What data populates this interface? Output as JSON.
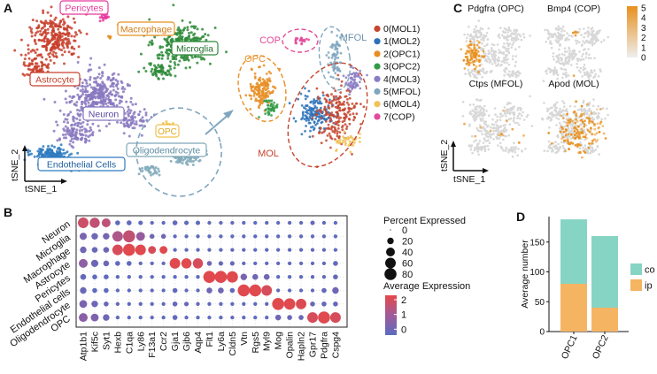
{
  "panel_labels": {
    "a": "A",
    "b": "B",
    "c": "C",
    "d": "D"
  },
  "tsne_main": {
    "clusters": [
      {
        "label": "Pericytes",
        "color": "#e8389c"
      },
      {
        "label": "Macrophage",
        "color": "#e8901e"
      },
      {
        "label": "Microglia",
        "color": "#2e8b3a"
      },
      {
        "label": "Astrocyte",
        "color": "#c8402c"
      },
      {
        "label": "Neuron",
        "color": "#8878c0"
      },
      {
        "label": "OPC",
        "color": "#f0c14a"
      },
      {
        "label": "Oligodendrocyte",
        "color": "#7fa8b8"
      },
      {
        "label": "Endothelial Cells",
        "color": "#2e7bc0"
      }
    ],
    "axis_x": "tSNE_1",
    "axis_y": "tSNE_2"
  },
  "tsne_sub": {
    "region_labels": {
      "cop": "COP",
      "mfol": "MFOL",
      "opc": "OPC",
      "mol": "MOL"
    },
    "legend": [
      {
        "label": "0(MOL1)",
        "color": "#c6452e"
      },
      {
        "label": "1(MOL2)",
        "color": "#2b72b8"
      },
      {
        "label": "2(OPC1)",
        "color": "#e88e23"
      },
      {
        "label": "3(OPC2)",
        "color": "#339b48"
      },
      {
        "label": "4(MOL3)",
        "color": "#8b7dc4"
      },
      {
        "label": "5(MFOL)",
        "color": "#7fa6bf"
      },
      {
        "label": "6(MOL4)",
        "color": "#f0c35a"
      },
      {
        "label": "7(COP)",
        "color": "#e34a9a"
      }
    ]
  },
  "feature_plots": {
    "panels": [
      {
        "title": "Pdgfra (OPC)"
      },
      {
        "title": "Bmp4 (COP)"
      },
      {
        "title": "Ctps (MFOL)"
      },
      {
        "title": "Apod (MOL)"
      }
    ],
    "colorbar_ticks": [
      "5",
      "4",
      "3",
      "2",
      "1",
      "0"
    ],
    "axis_x": "tSNE_1",
    "axis_y": "tSNE_2"
  },
  "chart_data": [
    {
      "type": "dot",
      "title": "",
      "cell_types": [
        "Neuron",
        "Microglia",
        "Macrophage",
        "Astrocyte",
        "Pericytes",
        "Endothelial cells",
        "Oligodendrocyte",
        "OPC"
      ],
      "genes": [
        "Atp1b1",
        "Kif5c",
        "Syt1",
        "Hexb",
        "C1qa",
        "Ly86",
        "F13a1",
        "Ccr2",
        "Gja1",
        "Gjb6",
        "Aqp4",
        "Flt1",
        "Ly6a",
        "Cldn5",
        "Vtn",
        "Rgs5",
        "Myl9",
        "Mog",
        "Opalin",
        "Hapln2",
        "Gpr17",
        "Pdgfra",
        "Cspg4"
      ],
      "percent_expressed": [
        [
          60,
          55,
          40,
          10,
          10,
          8,
          5,
          5,
          10,
          8,
          8,
          5,
          5,
          5,
          5,
          5,
          5,
          5,
          5,
          5,
          8,
          5,
          5
        ],
        [
          25,
          20,
          20,
          60,
          80,
          40,
          10,
          10,
          5,
          5,
          5,
          5,
          5,
          5,
          5,
          5,
          5,
          5,
          5,
          5,
          5,
          5,
          5
        ],
        [
          20,
          15,
          15,
          60,
          80,
          60,
          30,
          30,
          5,
          5,
          5,
          5,
          5,
          5,
          5,
          5,
          5,
          5,
          5,
          5,
          5,
          5,
          5
        ],
        [
          40,
          25,
          15,
          10,
          10,
          5,
          5,
          5,
          60,
          55,
          55,
          10,
          8,
          8,
          5,
          5,
          5,
          5,
          5,
          5,
          5,
          5,
          10
        ],
        [
          15,
          10,
          10,
          5,
          5,
          5,
          5,
          5,
          5,
          5,
          5,
          80,
          80,
          70,
          20,
          15,
          15,
          5,
          5,
          5,
          5,
          5,
          10
        ],
        [
          20,
          10,
          10,
          5,
          5,
          5,
          5,
          5,
          10,
          5,
          5,
          15,
          15,
          10,
          80,
          80,
          60,
          5,
          5,
          5,
          5,
          10,
          20
        ],
        [
          30,
          20,
          10,
          5,
          5,
          5,
          5,
          5,
          10,
          8,
          5,
          5,
          5,
          5,
          5,
          5,
          5,
          80,
          70,
          60,
          10,
          10,
          10
        ],
        [
          40,
          30,
          20,
          5,
          5,
          5,
          5,
          5,
          10,
          5,
          5,
          5,
          5,
          5,
          5,
          5,
          5,
          15,
          10,
          10,
          60,
          80,
          60
        ]
      ],
      "average_expression": [
        [
          1.8,
          1.6,
          1.5,
          -0.3,
          -0.3,
          -0.3,
          -0.3,
          -0.3,
          -0.2,
          -0.3,
          -0.3,
          -0.3,
          -0.3,
          -0.3,
          -0.3,
          -0.3,
          -0.3,
          -0.3,
          -0.3,
          -0.3,
          -0.2,
          -0.3,
          -0.3
        ],
        [
          0.2,
          0.0,
          0.1,
          1.2,
          1.6,
          0.8,
          0.0,
          0.0,
          -0.3,
          -0.3,
          -0.3,
          -0.3,
          -0.3,
          -0.3,
          -0.3,
          -0.3,
          -0.3,
          -0.3,
          -0.3,
          -0.3,
          -0.3,
          -0.3,
          -0.3
        ],
        [
          0.0,
          -0.1,
          0.0,
          2.0,
          2.2,
          2.2,
          2.0,
          2.2,
          -0.3,
          -0.3,
          -0.3,
          -0.3,
          -0.3,
          -0.3,
          -0.3,
          -0.3,
          -0.3,
          -0.3,
          -0.3,
          -0.3,
          -0.3,
          -0.3,
          -0.3
        ],
        [
          0.6,
          0.0,
          -0.1,
          -0.3,
          -0.3,
          -0.3,
          -0.3,
          -0.3,
          2.2,
          2.2,
          2.0,
          0.0,
          -0.2,
          -0.2,
          -0.3,
          -0.3,
          -0.3,
          -0.3,
          -0.3,
          -0.3,
          -0.3,
          -0.3,
          -0.2
        ],
        [
          -0.2,
          -0.3,
          -0.3,
          -0.3,
          -0.3,
          -0.3,
          -0.3,
          -0.3,
          -0.3,
          -0.3,
          -0.3,
          2.2,
          2.2,
          2.2,
          0.2,
          0.0,
          0.0,
          -0.3,
          -0.3,
          -0.3,
          -0.3,
          -0.3,
          -0.2
        ],
        [
          -0.1,
          -0.3,
          -0.3,
          -0.3,
          -0.3,
          -0.3,
          -0.3,
          -0.3,
          -0.2,
          -0.3,
          -0.3,
          0.0,
          0.0,
          -0.2,
          2.2,
          2.2,
          2.0,
          -0.3,
          -0.3,
          -0.3,
          -0.3,
          -0.2,
          0.0
        ],
        [
          0.2,
          0.0,
          -0.2,
          -0.3,
          -0.3,
          -0.3,
          -0.3,
          -0.3,
          -0.2,
          -0.2,
          -0.3,
          -0.3,
          -0.3,
          -0.3,
          -0.3,
          -0.3,
          -0.3,
          2.2,
          2.2,
          2.1,
          -0.1,
          -0.2,
          -0.2
        ],
        [
          0.5,
          0.3,
          0.0,
          -0.3,
          -0.3,
          -0.3,
          -0.3,
          -0.3,
          -0.2,
          -0.3,
          -0.3,
          -0.3,
          -0.3,
          -0.3,
          -0.3,
          -0.3,
          -0.3,
          0.0,
          -0.1,
          -0.1,
          2.0,
          2.2,
          2.0
        ]
      ],
      "size_legend": {
        "title": "Percent Expressed",
        "ticks": [
          "0",
          "20",
          "40",
          "60",
          "80"
        ]
      },
      "color_legend": {
        "title": "Average Expression",
        "ticks": [
          "2",
          "1",
          "0"
        ],
        "range": [
          -0.4,
          2.3
        ]
      }
    },
    {
      "type": "stacked_bar",
      "title": "",
      "categories": [
        "OPC1",
        "OPC2"
      ],
      "series": [
        {
          "name": "ip",
          "values": [
            80,
            40
          ],
          "color": "#f5b462"
        },
        {
          "name": "co",
          "values": [
            108,
            120
          ],
          "color": "#86d4c4"
        }
      ],
      "ylabel": "Average number",
      "ylim": [
        0,
        200
      ],
      "yticks": [
        "0",
        "50",
        "100",
        "150"
      ],
      "legend": [
        "co",
        "ip"
      ]
    }
  ]
}
